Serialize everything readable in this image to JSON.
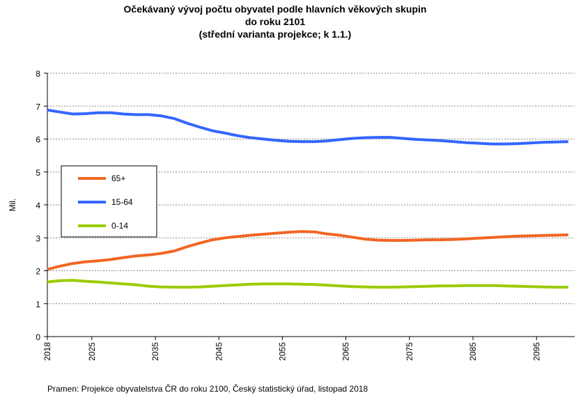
{
  "chart_data": {
    "type": "line",
    "title": [
      "Očekávaný vývoj počtu obyvatel podle hlavních věkových skupin",
      "do roku 2101",
      "(střední varianta projekce; k 1.1.)"
    ],
    "ylabel": "Mil.",
    "source": "Pramen: Projekce obyvatelstva  ČR do roku 2100, Český statistický úřad, listopad 2018",
    "x": [
      2018,
      2020,
      2022,
      2024,
      2026,
      2028,
      2030,
      2032,
      2034,
      2036,
      2038,
      2040,
      2042,
      2044,
      2046,
      2048,
      2050,
      2052,
      2054,
      2056,
      2058,
      2060,
      2062,
      2064,
      2066,
      2068,
      2070,
      2072,
      2074,
      2076,
      2078,
      2080,
      2082,
      2084,
      2086,
      2088,
      2090,
      2092,
      2094,
      2096,
      2098,
      2100
    ],
    "series": [
      {
        "name": "65+",
        "color": "#f26522",
        "values": [
          2.04,
          2.14,
          2.22,
          2.27,
          2.3,
          2.34,
          2.4,
          2.45,
          2.48,
          2.53,
          2.6,
          2.73,
          2.84,
          2.94,
          3.0,
          3.04,
          3.08,
          3.11,
          3.14,
          3.17,
          3.19,
          3.18,
          3.12,
          3.08,
          3.02,
          2.96,
          2.93,
          2.92,
          2.92,
          2.93,
          2.94,
          2.94,
          2.95,
          2.97,
          2.99,
          3.01,
          3.03,
          3.05,
          3.06,
          3.07,
          3.08,
          3.09
        ]
      },
      {
        "name": "15-64",
        "color": "#3366ff",
        "values": [
          6.88,
          6.82,
          6.76,
          6.77,
          6.8,
          6.8,
          6.76,
          6.74,
          6.74,
          6.7,
          6.62,
          6.48,
          6.36,
          6.25,
          6.18,
          6.1,
          6.04,
          6.0,
          5.96,
          5.93,
          5.92,
          5.92,
          5.94,
          5.98,
          6.02,
          6.04,
          6.05,
          6.05,
          6.02,
          5.99,
          5.97,
          5.95,
          5.92,
          5.89,
          5.87,
          5.85,
          5.85,
          5.86,
          5.88,
          5.9,
          5.91,
          5.92
        ]
      },
      {
        "name": "0-14",
        "color": "#99cc00",
        "values": [
          1.66,
          1.7,
          1.71,
          1.68,
          1.66,
          1.63,
          1.6,
          1.57,
          1.53,
          1.51,
          1.5,
          1.5,
          1.51,
          1.53,
          1.55,
          1.57,
          1.59,
          1.6,
          1.6,
          1.6,
          1.59,
          1.58,
          1.56,
          1.54,
          1.52,
          1.51,
          1.5,
          1.5,
          1.51,
          1.52,
          1.53,
          1.54,
          1.54,
          1.55,
          1.55,
          1.55,
          1.54,
          1.53,
          1.52,
          1.51,
          1.5,
          1.5
        ]
      }
    ],
    "xlim": [
      2018,
      2101
    ],
    "xticks": [
      2018,
      2025,
      2035,
      2045,
      2055,
      2065,
      2075,
      2085,
      2095
    ],
    "ylim": [
      0,
      8
    ],
    "yticks": [
      0,
      1,
      2,
      3,
      4,
      5,
      6,
      7,
      8
    ],
    "grid": true
  }
}
